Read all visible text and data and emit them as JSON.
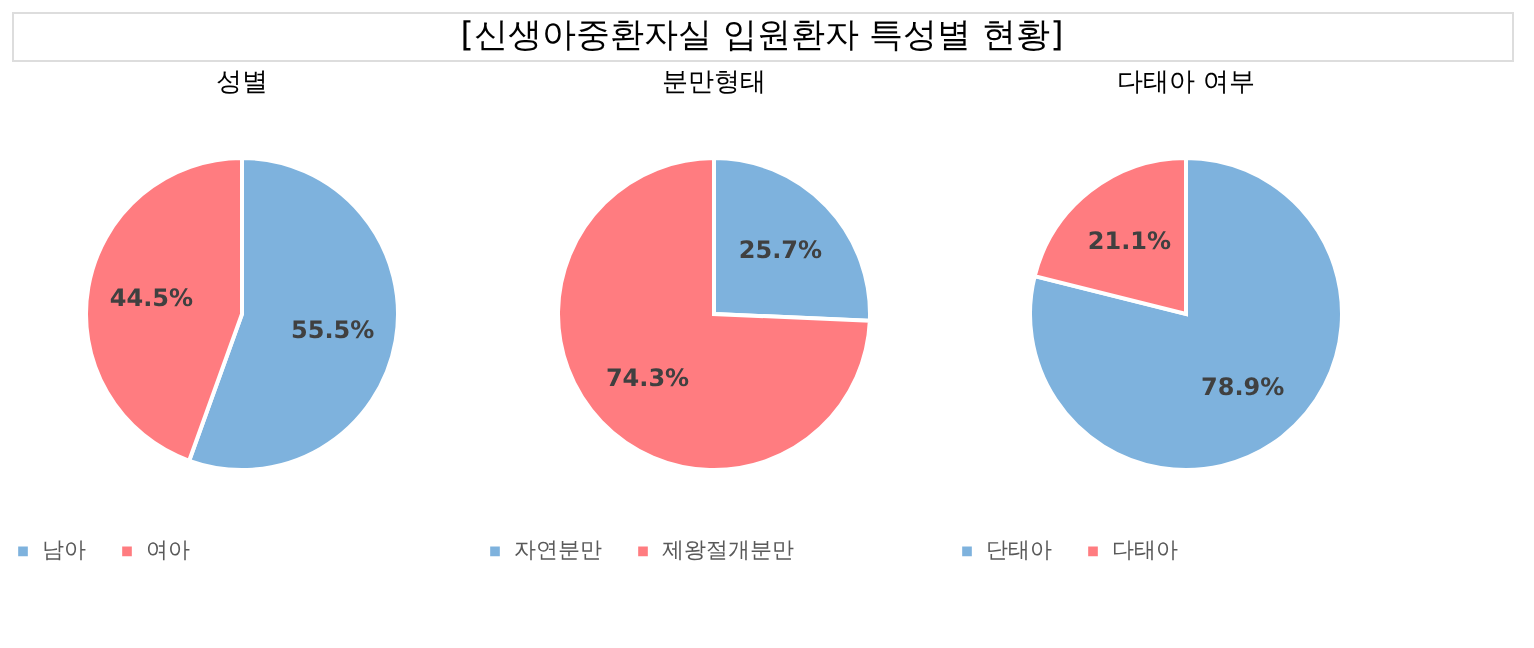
{
  "chart_data": [
    {
      "type": "other",
      "title": "[신생아중환자실 입원환자 특성별 현황]"
    },
    {
      "type": "pie",
      "subtitle": "성별",
      "categories": [
        "남아",
        "여아"
      ],
      "values": [
        55.5,
        44.5
      ],
      "colors": [
        "#7eb2dd",
        "#ff7c80"
      ],
      "value_labels": [
        "55.5%",
        "44.5%"
      ],
      "legend": "bottom"
    },
    {
      "type": "pie",
      "subtitle": "분만형태",
      "categories": [
        "자연분만",
        "제왕절개분만"
      ],
      "values": [
        25.7,
        74.3
      ],
      "colors": [
        "#7eb2dd",
        "#ff7c80"
      ],
      "value_labels": [
        "25.7%",
        "74.3%"
      ],
      "legend": "bottom"
    },
    {
      "type": "pie",
      "subtitle": "다태아 여부",
      "categories": [
        "단태아",
        "다태아"
      ],
      "values": [
        78.9,
        21.1
      ],
      "colors": [
        "#7eb2dd",
        "#ff7c80"
      ],
      "value_labels": [
        "78.9%",
        "21.1%"
      ],
      "legend": "bottom"
    }
  ]
}
